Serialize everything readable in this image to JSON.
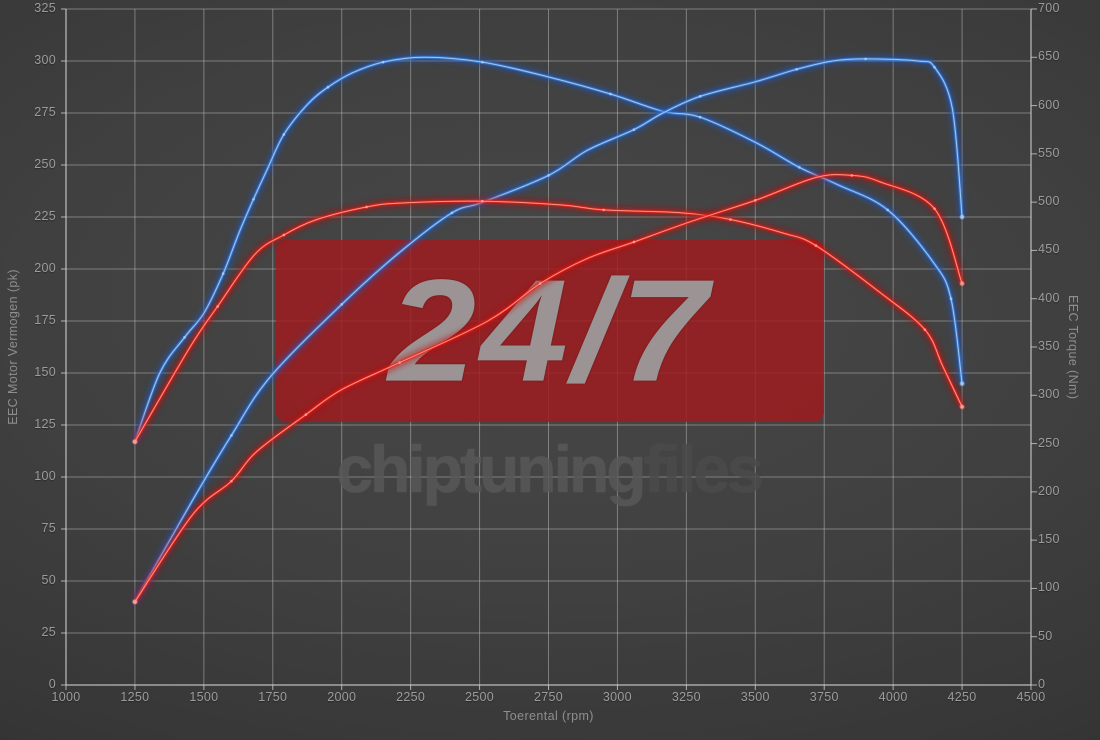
{
  "watermark": {
    "badge_text": "24/7",
    "brand_left": "chiptuning",
    "brand_right": "files"
  },
  "chart_data": {
    "type": "line",
    "title": "",
    "xlabel": "Toerental (rpm)",
    "ylabel_left": "EEC Motor Vermogen (pk)",
    "ylabel_right": "EEC Torque (Nm)",
    "x_range": [
      1000,
      4500
    ],
    "x_ticks": [
      1000,
      1250,
      1500,
      1750,
      2000,
      2250,
      2500,
      2750,
      3000,
      3250,
      3500,
      3750,
      4000,
      4250,
      4500
    ],
    "y_left_range": [
      0,
      325
    ],
    "y_left_ticks": [
      0,
      25,
      50,
      75,
      100,
      125,
      150,
      175,
      200,
      225,
      250,
      275,
      300,
      325
    ],
    "y_right_range": [
      0,
      700
    ],
    "y_right_ticks": [
      0,
      50,
      100,
      150,
      200,
      250,
      300,
      350,
      400,
      450,
      500,
      550,
      600,
      650,
      700
    ],
    "grid": true,
    "legend_position": "none",
    "colors": {
      "tuned": "#3f87e6",
      "tuned_core": "#a9cdf4",
      "tuned_glow": "#1d56c0",
      "original": "#f42318",
      "original_core": "#ffa091",
      "original_glow": "#c01010",
      "grid": "rgba(205,205,205,0.45)",
      "spine": "rgba(215,215,215,0.75)"
    },
    "series": [
      {
        "name": "tuned-torque",
        "axis": "right",
        "unit": "Nm",
        "color_key": "tuned",
        "points": [
          [
            1250,
            252
          ],
          [
            1340,
            323
          ],
          [
            1430,
            360
          ],
          [
            1500,
            385
          ],
          [
            1570,
            426
          ],
          [
            1630,
            470
          ],
          [
            1680,
            503
          ],
          [
            1730,
            534
          ],
          [
            1790,
            570
          ],
          [
            1875,
            601
          ],
          [
            1950,
            619
          ],
          [
            2040,
            634
          ],
          [
            2150,
            645
          ],
          [
            2300,
            650
          ],
          [
            2510,
            645
          ],
          [
            2745,
            630
          ],
          [
            2975,
            612
          ],
          [
            3165,
            594
          ],
          [
            3300,
            588
          ],
          [
            3500,
            562
          ],
          [
            3660,
            536
          ],
          [
            3800,
            518
          ],
          [
            3980,
            492
          ],
          [
            4145,
            438
          ],
          [
            4210,
            400
          ],
          [
            4250,
            312
          ]
        ]
      },
      {
        "name": "tuned-power",
        "axis": "left",
        "unit": "pk",
        "color_key": "tuned",
        "points": [
          [
            1250,
            40
          ],
          [
            1460,
            89
          ],
          [
            1600,
            120
          ],
          [
            1740,
            148
          ],
          [
            2000,
            183
          ],
          [
            2210,
            208
          ],
          [
            2400,
            227
          ],
          [
            2510,
            232
          ],
          [
            2750,
            245
          ],
          [
            2890,
            257
          ],
          [
            3060,
            267
          ],
          [
            3165,
            275
          ],
          [
            3300,
            283
          ],
          [
            3500,
            290
          ],
          [
            3650,
            296
          ],
          [
            3780,
            300
          ],
          [
            3900,
            301
          ],
          [
            4090,
            300
          ],
          [
            4150,
            297
          ],
          [
            4215,
            277
          ],
          [
            4250,
            225
          ]
        ]
      },
      {
        "name": "original-torque",
        "axis": "right",
        "unit": "Nm",
        "color_key": "original",
        "points": [
          [
            1250,
            252
          ],
          [
            1450,
            350
          ],
          [
            1550,
            392
          ],
          [
            1685,
            446
          ],
          [
            1790,
            466
          ],
          [
            1910,
            482
          ],
          [
            2090,
            495
          ],
          [
            2210,
            499
          ],
          [
            2510,
            501
          ],
          [
            2800,
            497
          ],
          [
            2950,
            492
          ],
          [
            3230,
            489
          ],
          [
            3410,
            482
          ],
          [
            3600,
            468
          ],
          [
            3720,
            455
          ],
          [
            3950,
            407
          ],
          [
            4115,
            368
          ],
          [
            4180,
            330
          ],
          [
            4250,
            288
          ]
        ]
      },
      {
        "name": "original-power",
        "axis": "left",
        "unit": "pk",
        "color_key": "original",
        "points": [
          [
            1250,
            40
          ],
          [
            1460,
            82
          ],
          [
            1600,
            98
          ],
          [
            1690,
            112
          ],
          [
            1870,
            130
          ],
          [
            2000,
            142
          ],
          [
            2210,
            155
          ],
          [
            2530,
            175
          ],
          [
            2720,
            193
          ],
          [
            2890,
            205
          ],
          [
            3060,
            213
          ],
          [
            3270,
            223
          ],
          [
            3500,
            233
          ],
          [
            3720,
            244
          ],
          [
            3850,
            245
          ],
          [
            3950,
            242
          ],
          [
            4150,
            229
          ],
          [
            4250,
            193
          ]
        ]
      }
    ]
  }
}
